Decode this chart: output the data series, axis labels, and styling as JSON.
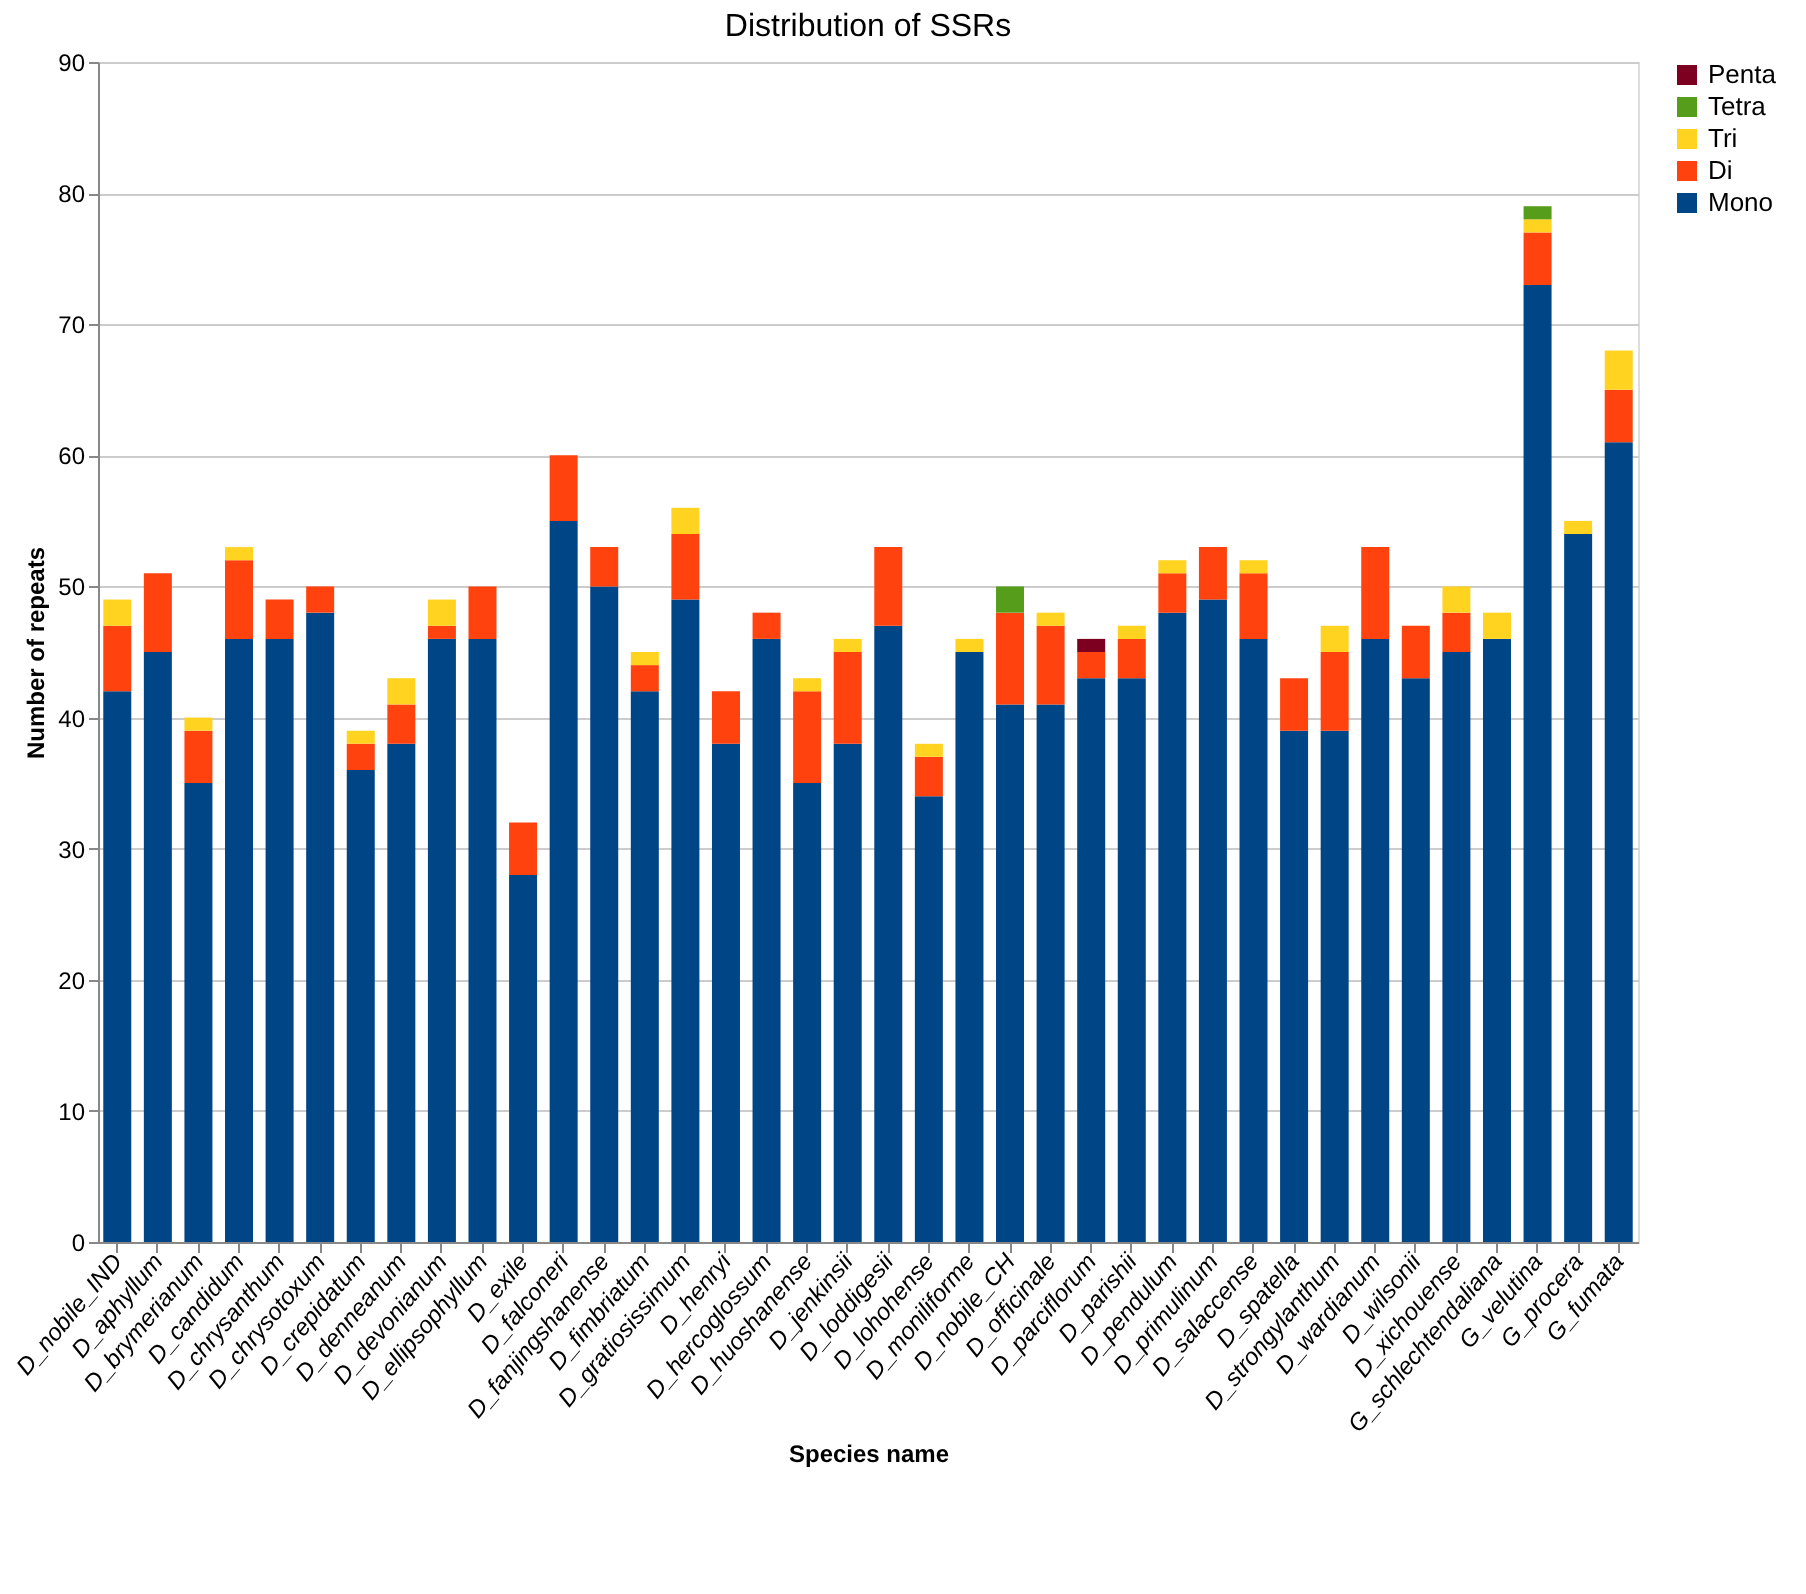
{
  "chart_data": {
    "type": "bar",
    "stacked": true,
    "title": "Distribution of SSRs",
    "xlabel": "Species name",
    "ylabel": "Number of repeats",
    "categories": [
      "D_nobile_IND",
      "D_aphyllum",
      "D_brymerianum",
      "D_candidum",
      "D_chrysanthum",
      "D_chrysotoxum",
      "D_crepidatum",
      "D_denneanum",
      "D_devonianum",
      "D_ellipsophyllum",
      "D_exile",
      "D_falconeri",
      "D_fanjingshanense",
      "D_fimbriatum",
      "D_gratiosissimum",
      "D_henryi",
      "D_hercoglossum",
      "D_huoshanense",
      "D_jenkinsii",
      "D_loddigesii",
      "D_lohohense",
      "D_moniliforme",
      "D_nobile_CH",
      "D_officinale",
      "D_parciflorum",
      "D_parishii",
      "D_pendulum",
      "D_primulinum",
      "D_salaccense",
      "D_spatella",
      "D_strongylanthum",
      "D_wardianum",
      "D_wilsonii",
      "D_xichouense",
      "G_schlechtendaliana",
      "G_velutina",
      "G_procera",
      "G_fumata"
    ],
    "series": [
      {
        "name": "Mono",
        "color": "#004586",
        "values": [
          42,
          45,
          35,
          46,
          46,
          48,
          36,
          38,
          46,
          46,
          28,
          55,
          50,
          42,
          49,
          38,
          46,
          35,
          38,
          47,
          34,
          45,
          41,
          41,
          43,
          43,
          48,
          49,
          46,
          39,
          39,
          46,
          43,
          45,
          46,
          73,
          54,
          61
        ]
      },
      {
        "name": "Di",
        "color": "#ff420e",
        "values": [
          5,
          6,
          4,
          6,
          3,
          2,
          2,
          3,
          1,
          4,
          4,
          5,
          3,
          2,
          5,
          4,
          2,
          7,
          7,
          6,
          3,
          null,
          7,
          6,
          2,
          3,
          3,
          4,
          5,
          4,
          6,
          7,
          4,
          3,
          null,
          4,
          null,
          4
        ]
      },
      {
        "name": "Tri",
        "color": "#ffd320",
        "values": [
          2,
          null,
          1,
          1,
          null,
          null,
          1,
          2,
          2,
          null,
          null,
          null,
          null,
          1,
          2,
          null,
          null,
          1,
          1,
          null,
          1,
          1,
          null,
          1,
          null,
          1,
          1,
          null,
          1,
          null,
          2,
          null,
          null,
          2,
          2,
          1,
          1,
          3
        ]
      },
      {
        "name": "Tetra",
        "color": "#579d1c",
        "values": [
          null,
          null,
          null,
          null,
          null,
          null,
          null,
          null,
          null,
          null,
          null,
          null,
          null,
          null,
          null,
          null,
          null,
          null,
          null,
          null,
          null,
          null,
          2,
          null,
          null,
          null,
          null,
          null,
          null,
          null,
          null,
          null,
          null,
          null,
          null,
          1,
          null,
          null
        ]
      },
      {
        "name": "Penta",
        "color": "#7e0021",
        "values": [
          null,
          null,
          null,
          null,
          null,
          null,
          null,
          null,
          null,
          null,
          null,
          null,
          null,
          null,
          null,
          null,
          null,
          null,
          null,
          null,
          null,
          null,
          null,
          null,
          1,
          null,
          null,
          null,
          null,
          null,
          null,
          null,
          null,
          null,
          null,
          null,
          null,
          null
        ]
      }
    ],
    "ylim": [
      0,
      90
    ],
    "yticks": [
      0,
      10,
      20,
      30,
      40,
      50,
      60,
      70,
      80,
      90
    ],
    "grid": "y",
    "legend": "right"
  }
}
